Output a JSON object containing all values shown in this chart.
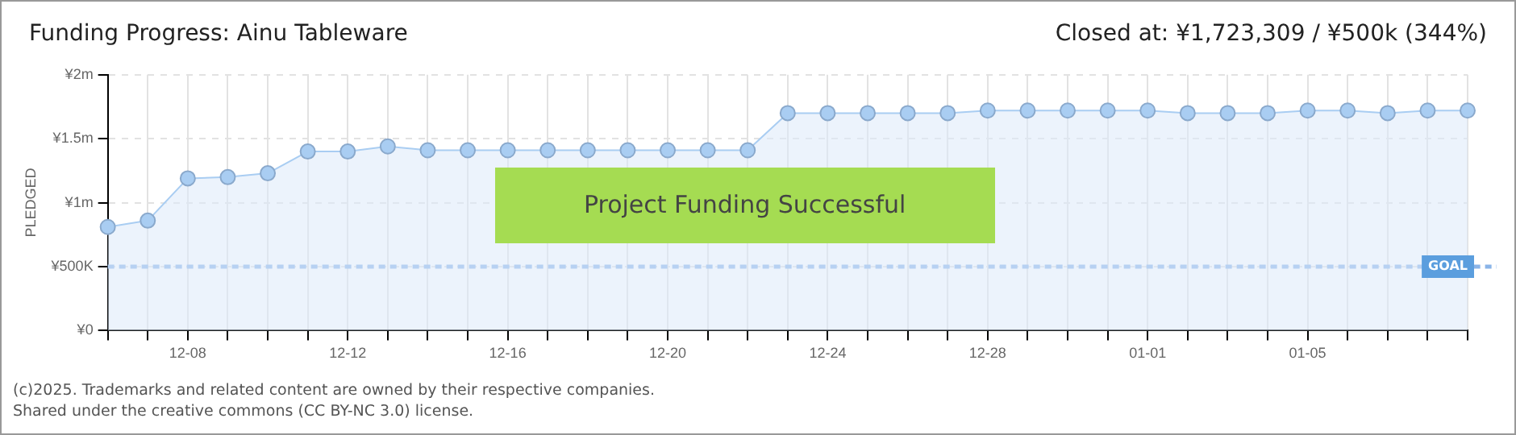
{
  "chart_data": {
    "type": "area",
    "title": "Funding Progress: Ainu Tableware",
    "subtitle": "Closed at:  ¥1,723,309 /  ¥500k (344%)",
    "ylabel": "PLEDGED",
    "categories": [
      null,
      null,
      "12-08",
      null,
      null,
      null,
      "12-12",
      null,
      null,
      null,
      "12-16",
      null,
      null,
      null,
      "12-20",
      null,
      null,
      null,
      "12-24",
      null,
      null,
      null,
      "12-28",
      null,
      null,
      null,
      "01-01",
      null,
      null,
      null,
      "01-05",
      null,
      null,
      null,
      null
    ],
    "series": [
      {
        "color": "#a9cdf2",
        "values": [
          810000,
          860000,
          1190000,
          1200000,
          1230000,
          1400000,
          1400000,
          1440000,
          1410000,
          1410000,
          1410000,
          1410000,
          1410000,
          1410000,
          1410000,
          1410000,
          1410000,
          1700000,
          1700000,
          1700000,
          1700000,
          1700000,
          1720000,
          1720000,
          1720000,
          1720000,
          1720000,
          1700000,
          1700000,
          1700000,
          1720000,
          1720000,
          1700000,
          1720000,
          1720000
        ]
      }
    ],
    "ylim": [
      0,
      2000000
    ],
    "yticks": [
      {
        "value": 0,
        "label": "¥0"
      },
      {
        "value": 500000,
        "label": "¥500K"
      },
      {
        "value": 1000000,
        "label": "¥1m"
      },
      {
        "value": 1500000,
        "label": "¥1.5m"
      },
      {
        "value": 2000000,
        "label": "¥2m"
      }
    ],
    "grid": true,
    "marker": "circle",
    "line_style": "solid",
    "legend": false,
    "ref_lines": [
      {
        "axis": "y",
        "value": 500000,
        "label": "GOAL",
        "color": "#8ab4e8",
        "line_style": "dashed"
      }
    ],
    "annotations": [
      "Project Funding Successful",
      "(c)2025. Trademarks and related content are owned by their respective companies.",
      "Shared under the creative commons (CC BY-NC 3.0) license."
    ]
  }
}
